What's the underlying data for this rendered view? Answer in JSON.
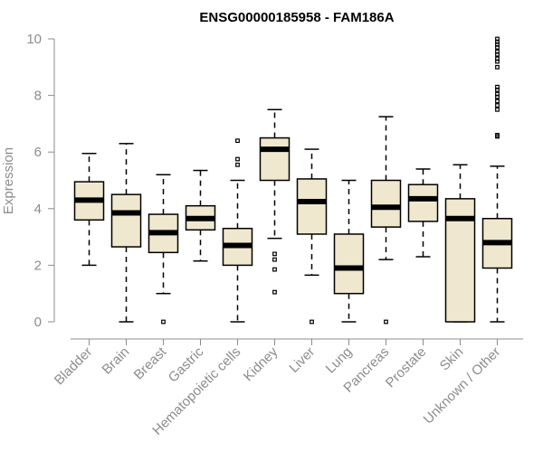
{
  "chart_data": {
    "type": "boxplot",
    "title": "ENSG00000185958 - FAM186A",
    "xlabel": "",
    "ylabel": "Expression",
    "ylim": [
      0,
      10
    ],
    "yticks": [
      0,
      2,
      4,
      6,
      8,
      10
    ],
    "grid": false,
    "colors": {
      "box_fill": "#efe8cf",
      "stroke": "#000000",
      "axis_text": "#8c8c8c"
    },
    "categories": [
      "Bladder",
      "Brain",
      "Breast",
      "Gastric",
      "Hematopoietic cells",
      "Kidney",
      "Liver",
      "Lung",
      "Pancreas",
      "Prostate",
      "Skin",
      "Unknown / Other"
    ],
    "boxes": [
      {
        "category": "Bladder",
        "whisker_low": 2.0,
        "q1": 3.6,
        "median": 4.3,
        "q3": 4.95,
        "whisker_high": 5.95,
        "outliers": []
      },
      {
        "category": "Brain",
        "whisker_low": 0.0,
        "q1": 2.65,
        "median": 3.85,
        "q3": 4.5,
        "whisker_high": 6.3,
        "outliers": []
      },
      {
        "category": "Breast",
        "whisker_low": 1.0,
        "q1": 2.45,
        "median": 3.15,
        "q3": 3.8,
        "whisker_high": 5.2,
        "outliers": [
          0.0
        ]
      },
      {
        "category": "Gastric",
        "whisker_low": 2.15,
        "q1": 3.25,
        "median": 3.65,
        "q3": 4.1,
        "whisker_high": 5.35,
        "outliers": []
      },
      {
        "category": "Hematopoietic cells",
        "whisker_low": 0.0,
        "q1": 2.0,
        "median": 2.7,
        "q3": 3.3,
        "whisker_high": 5.0,
        "outliers": [
          5.55,
          5.75,
          6.4
        ]
      },
      {
        "category": "Kidney",
        "whisker_low": 2.95,
        "q1": 5.0,
        "median": 6.1,
        "q3": 6.5,
        "whisker_high": 7.5,
        "outliers": [
          1.05,
          1.85,
          2.2,
          2.4
        ]
      },
      {
        "category": "Liver",
        "whisker_low": 1.65,
        "q1": 3.1,
        "median": 4.25,
        "q3": 5.05,
        "whisker_high": 6.1,
        "outliers": [
          0.0
        ]
      },
      {
        "category": "Lung",
        "whisker_low": 0.0,
        "q1": 1.0,
        "median": 1.9,
        "q3": 3.1,
        "whisker_high": 5.0,
        "outliers": []
      },
      {
        "category": "Pancreas",
        "whisker_low": 2.2,
        "q1": 3.35,
        "median": 4.05,
        "q3": 5.0,
        "whisker_high": 7.25,
        "outliers": [
          0.0
        ]
      },
      {
        "category": "Prostate",
        "whisker_low": 2.3,
        "q1": 3.55,
        "median": 4.35,
        "q3": 4.85,
        "whisker_high": 5.4,
        "outliers": []
      },
      {
        "category": "Skin",
        "whisker_low": 0.0,
        "q1": 0.0,
        "median": 3.65,
        "q3": 4.35,
        "whisker_high": 5.55,
        "outliers": []
      },
      {
        "category": "Unknown / Other",
        "whisker_low": 0.0,
        "q1": 1.9,
        "median": 2.8,
        "q3": 3.65,
        "whisker_high": 5.5,
        "outliers": [
          6.55,
          6.6,
          7.5,
          7.65,
          7.8,
          7.95,
          8.05,
          8.2,
          8.3,
          9.0,
          9.2,
          9.3,
          9.45,
          9.55,
          9.7,
          9.8,
          9.9,
          10.0
        ]
      }
    ]
  }
}
